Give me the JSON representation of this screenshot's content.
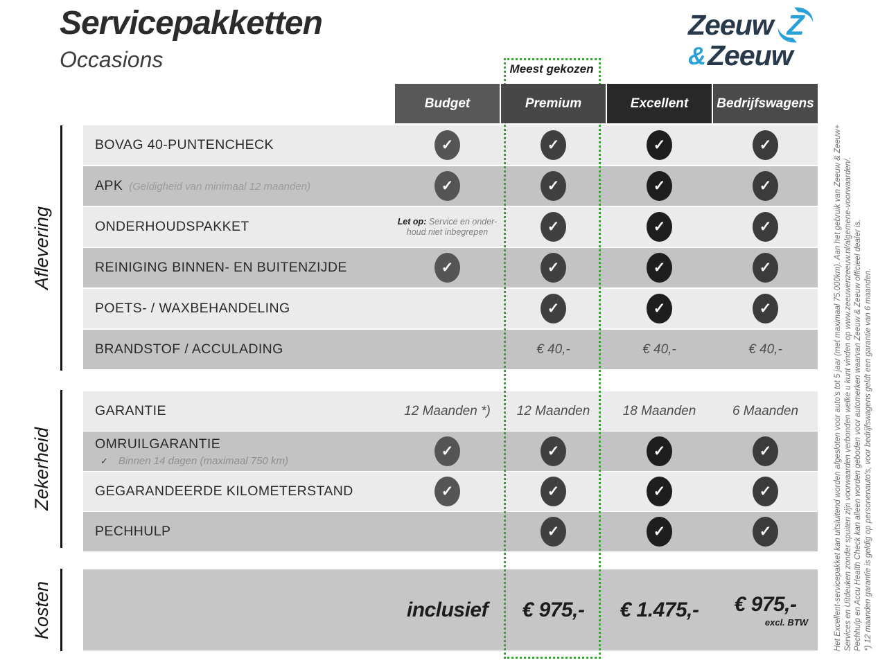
{
  "page": {
    "title": "Servicepakketten",
    "subtitle": "Occasions"
  },
  "logo": {
    "word1": "Zeeuw",
    "amp": "&",
    "word2": "Zeeuw",
    "navy": "#27394b",
    "blue": "#2aa0d8"
  },
  "highlight": {
    "label": "Meest gekozen",
    "color": "#3aa137"
  },
  "check_glyph": "✓",
  "columns": [
    {
      "id": "budget",
      "label": "Budget",
      "header_bg": "#585858",
      "check_bg": "#555555"
    },
    {
      "id": "premium",
      "label": "Premium",
      "header_bg": "#474747",
      "check_bg": "#404040",
      "highlighted": true
    },
    {
      "id": "excellent",
      "label": "Excellent",
      "header_bg": "#282828",
      "check_bg": "#1e1e1e"
    },
    {
      "id": "bedrijfswagens",
      "label": "Bedrijfswagens",
      "header_bg": "#4a4a4a",
      "check_bg": "#3b3b3b"
    }
  ],
  "sections": [
    {
      "id": "aflevering",
      "label": "Aflevering",
      "rows": [
        {
          "label": "BOVAG 40-PUNTENCHECK",
          "cells": [
            {
              "type": "check"
            },
            {
              "type": "check"
            },
            {
              "type": "check"
            },
            {
              "type": "check"
            }
          ]
        },
        {
          "label": "APK",
          "label_note": "(Geldigheid van minimaal 12 maanden)",
          "cells": [
            {
              "type": "check"
            },
            {
              "type": "check"
            },
            {
              "type": "check"
            },
            {
              "type": "check"
            }
          ]
        },
        {
          "label": "ONDERHOUDSPAKKET",
          "cells": [
            {
              "type": "note",
              "bold": "Let op:",
              "line1": "Service en onder-",
              "line2": "houd niet inbegrepen"
            },
            {
              "type": "check"
            },
            {
              "type": "check"
            },
            {
              "type": "check"
            }
          ]
        },
        {
          "label": "REINIGING BINNEN- EN BUITENZIJDE",
          "cells": [
            {
              "type": "check"
            },
            {
              "type": "check"
            },
            {
              "type": "check"
            },
            {
              "type": "check"
            }
          ]
        },
        {
          "label": "POETS- / WAXBEHANDELING",
          "cells": [
            {
              "type": "empty"
            },
            {
              "type": "check"
            },
            {
              "type": "check"
            },
            {
              "type": "check"
            }
          ]
        },
        {
          "label": "BRANDSTOF / ACCULADING",
          "cells": [
            {
              "type": "empty"
            },
            {
              "type": "text",
              "value": "€ 40,-"
            },
            {
              "type": "text",
              "value": "€ 40,-"
            },
            {
              "type": "text",
              "value": "€ 40,-"
            }
          ]
        }
      ]
    },
    {
      "id": "zekerheid",
      "label": "Zekerheid",
      "rows": [
        {
          "label": "GARANTIE",
          "cells": [
            {
              "type": "text",
              "value": "12 Maanden *)"
            },
            {
              "type": "text",
              "value": "12 Maanden"
            },
            {
              "type": "text",
              "value": "18 Maanden"
            },
            {
              "type": "text",
              "value": "6 Maanden"
            }
          ]
        },
        {
          "label": "OMRUILGARANTIE",
          "sub_check": "✓",
          "sub_text": "Binnen 14 dagen (maximaal 750 km)",
          "cells": [
            {
              "type": "check"
            },
            {
              "type": "check"
            },
            {
              "type": "check"
            },
            {
              "type": "check"
            }
          ]
        },
        {
          "label": "GEGARANDEERDE KILOMETERSTAND",
          "cells": [
            {
              "type": "check"
            },
            {
              "type": "check"
            },
            {
              "type": "check"
            },
            {
              "type": "check"
            }
          ]
        },
        {
          "label": "PECHHULP",
          "cells": [
            {
              "type": "empty"
            },
            {
              "type": "check"
            },
            {
              "type": "check"
            },
            {
              "type": "check"
            }
          ]
        }
      ]
    },
    {
      "id": "kosten",
      "label": "Kosten",
      "price_row": {
        "values": [
          "inclusief",
          "€ 975,-",
          "€ 1.475,-",
          "€ 975,-"
        ],
        "last_note": "excl. BTW"
      }
    }
  ],
  "legal_lines": [
    "Het Excellent-servicepakket kan uitsluitend worden afgesloten voor auto's tot 5 jaar (met maximaal 75.000km). Aan het gebruik van Zeeuw & Zeeuw+",
    "Services en Uitdeuken zonder spuiten zijn voorwaarden verbonden welke u kunt vinden op www.zeeuwenzeeuw.nl/algemene-voorwaarden/.",
    "Pechhulp en Accu Health Check kan alleen worden geboden voor automerken waarvan Zeeuw & Zeeuw officieel dealer is.",
    "*) 12 maanden garantie is geldig op personenauto's, voor bedrijfswagens geldt een garantie van 6 maanden."
  ]
}
